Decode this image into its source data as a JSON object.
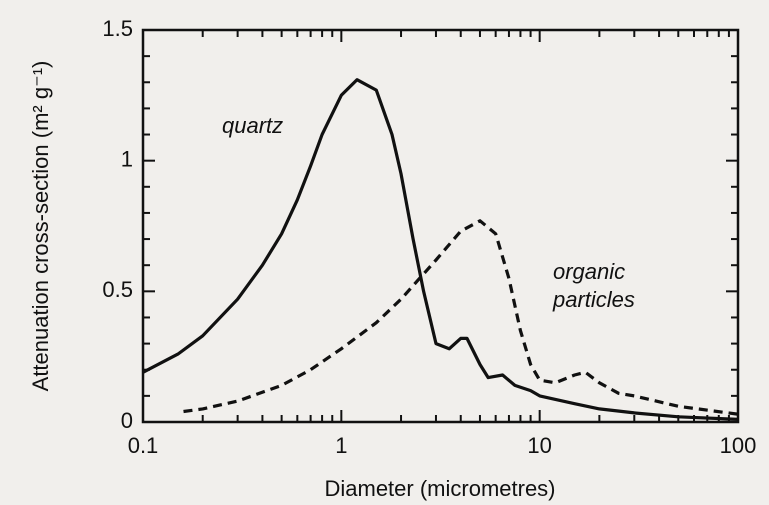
{
  "chart_data": {
    "type": "line",
    "xlabel": "Diameter (micrometres)",
    "ylabel": "Attenuation cross-section (m² g⁻¹)",
    "xscale": "log",
    "xlim": [
      0.1,
      100
    ],
    "ylim": [
      0,
      1.5
    ],
    "xticks": [
      0.1,
      1,
      10,
      100
    ],
    "yticks": [
      0,
      0.5,
      1,
      1.5
    ],
    "xminorticks": [
      0.2,
      0.3,
      0.4,
      0.5,
      0.6,
      0.7,
      0.8,
      0.9,
      2,
      3,
      4,
      5,
      6,
      7,
      8,
      9,
      20,
      30,
      40,
      50,
      60,
      70,
      80,
      90
    ],
    "yminorticks": [
      0.1,
      0.2,
      0.3,
      0.4,
      0.6,
      0.7,
      0.8,
      0.9,
      1.1,
      1.2,
      1.3,
      1.4
    ],
    "series": [
      {
        "name": "quartz",
        "color": "#111111",
        "linestyle": "solid",
        "x": [
          0.1,
          0.15,
          0.2,
          0.3,
          0.4,
          0.5,
          0.6,
          0.7,
          0.8,
          1.0,
          1.2,
          1.5,
          1.8,
          2.0,
          2.3,
          2.6,
          3.0,
          3.5,
          4.0,
          4.3,
          5.0,
          5.5,
          6.5,
          7.5,
          9,
          10,
          15,
          20,
          30,
          50,
          100
        ],
        "values": [
          0.19,
          0.26,
          0.33,
          0.47,
          0.6,
          0.72,
          0.85,
          0.98,
          1.1,
          1.25,
          1.31,
          1.27,
          1.1,
          0.95,
          0.7,
          0.5,
          0.3,
          0.28,
          0.32,
          0.32,
          0.22,
          0.17,
          0.18,
          0.14,
          0.12,
          0.1,
          0.07,
          0.05,
          0.035,
          0.02,
          0.01
        ]
      },
      {
        "name": "organic particles",
        "color": "#111111",
        "linestyle": "dashed",
        "x": [
          0.16,
          0.2,
          0.3,
          0.5,
          0.7,
          1.0,
          1.5,
          2,
          3,
          4,
          5,
          6,
          7,
          8,
          9,
          10,
          12,
          15,
          17,
          20,
          25,
          30,
          50,
          100
        ],
        "values": [
          0.04,
          0.05,
          0.08,
          0.14,
          0.2,
          0.28,
          0.38,
          0.47,
          0.62,
          0.73,
          0.77,
          0.72,
          0.55,
          0.35,
          0.22,
          0.16,
          0.15,
          0.18,
          0.19,
          0.15,
          0.11,
          0.1,
          0.06,
          0.03
        ]
      }
    ]
  }
}
